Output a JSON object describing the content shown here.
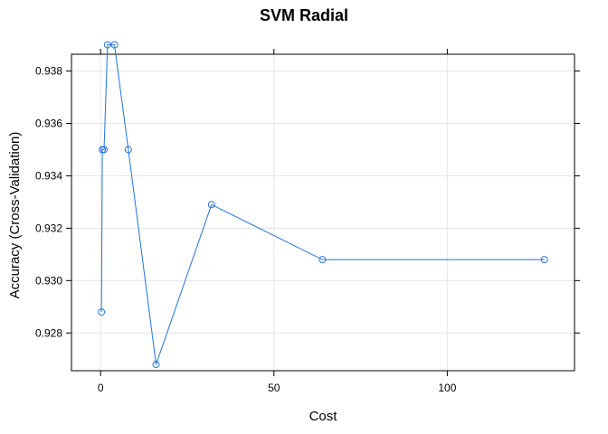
{
  "chart_data": {
    "type": "line",
    "title": "SVM Radial",
    "xlabel": "Cost",
    "ylabel": "Accuracy (Cross-Validation)",
    "xlim": [
      -8.4,
      136.7
    ],
    "ylim": [
      0.92656,
      0.93864
    ],
    "x_ticks": [
      0,
      50,
      100
    ],
    "y_ticks": [
      0.928,
      0.93,
      0.932,
      0.934,
      0.936,
      0.938
    ],
    "y_tick_labels": [
      "0.928",
      "0.930",
      "0.932",
      "0.934",
      "0.936",
      "0.938"
    ],
    "grid": true,
    "series": [
      {
        "color": "#1e74e6",
        "x": [
          0.25,
          0.5,
          1,
          2,
          4,
          8,
          16,
          32,
          64,
          128
        ],
        "y": [
          0.9288,
          0.935,
          0.935,
          0.939,
          0.939,
          0.935,
          0.9268,
          0.9329,
          0.9308,
          0.9308
        ]
      }
    ]
  }
}
